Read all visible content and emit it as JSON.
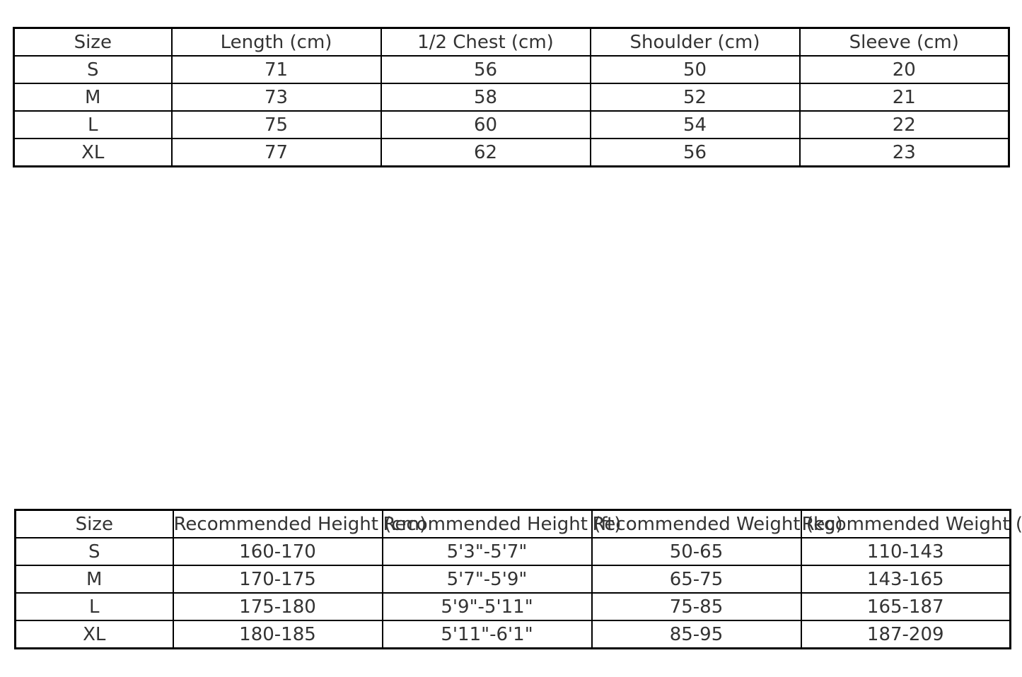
{
  "colors": {
    "background": "#ffffff",
    "border": "#000000",
    "text": "#333333"
  },
  "chart_data": [
    {
      "type": "table",
      "name": "garment-measurements",
      "columns": [
        "Size",
        "Length (cm)",
        "1/2 Chest (cm)",
        "Shoulder (cm)",
        "Sleeve (cm)"
      ],
      "rows": [
        [
          "S",
          "71",
          "56",
          "50",
          "20"
        ],
        [
          "M",
          "73",
          "58",
          "52",
          "21"
        ],
        [
          "L",
          "75",
          "60",
          "54",
          "22"
        ],
        [
          "XL",
          "77",
          "62",
          "56",
          "23"
        ]
      ]
    },
    {
      "type": "table",
      "name": "recommended-body-size",
      "columns": [
        "Size",
        "Recommended Height (cm)",
        "Recommended Height (ft)",
        "Recommended Weight (kg)",
        "Recommended Weight (lbs)"
      ],
      "rows": [
        [
          "S",
          "160-170",
          "5'3\"-5'7\"",
          "50-65",
          "110-143"
        ],
        [
          "M",
          "170-175",
          "5'7\"-5'9\"",
          "65-75",
          "143-165"
        ],
        [
          "L",
          "175-180",
          "5'9\"-5'11\"",
          "75-85",
          "165-187"
        ],
        [
          "XL",
          "180-185",
          "5'11\"-6'1\"",
          "85-95",
          "187-209"
        ]
      ]
    }
  ]
}
